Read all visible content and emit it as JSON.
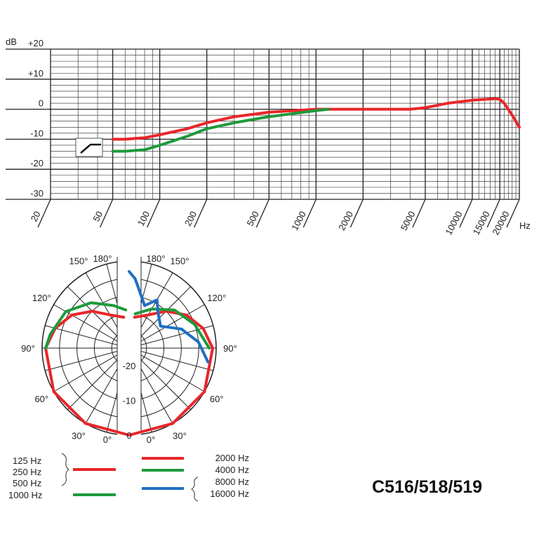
{
  "model": "C516/518/519",
  "chart_data": [
    {
      "type": "line",
      "xscale": "log",
      "xlim": [
        20,
        20000
      ],
      "ylim": [
        -30,
        20
      ],
      "ylabel": "dB",
      "xlabel": "Hz",
      "y_ticks": [
        "+20",
        "+10",
        "0",
        "-10",
        "-20",
        "-30"
      ],
      "x_ticks": [
        "20",
        "50",
        "100",
        "200",
        "500",
        "1000",
        "2000",
        "5000",
        "10000",
        "15000",
        "20000"
      ],
      "series": [
        {
          "color": "#e8262b",
          "x": [
            50,
            60,
            80,
            100,
            150,
            200,
            300,
            500,
            1000,
            2000,
            4000,
            5000,
            7000,
            10000,
            12000,
            14000,
            15000,
            16000,
            18000,
            20000
          ],
          "y": [
            -10,
            -10,
            -9.5,
            -8.5,
            -6.5,
            -4.5,
            -2.5,
            -1,
            0,
            0,
            0,
            0.5,
            2,
            3,
            3.3,
            3.5,
            3.3,
            2,
            -2,
            -6
          ]
        },
        {
          "color": "#1e9a3c",
          "x": [
            50,
            60,
            80,
            100,
            150,
            200,
            300,
            500,
            1000,
            1200
          ],
          "y": [
            -14,
            -14,
            -13.5,
            -12,
            -9,
            -6.5,
            -4.5,
            -2.5,
            -0.5,
            0
          ]
        }
      ]
    },
    {
      "type": "polar",
      "angle_labels": [
        "180°",
        "150°",
        "120°",
        "90°",
        "60°",
        "30°",
        "0°"
      ],
      "radial_labels": [
        "-20",
        "-10",
        "0"
      ],
      "rlim": [
        -25,
        0
      ],
      "series_left": [
        {
          "name": "125 Hz 250 Hz 500 Hz",
          "color": "#e8262b",
          "points": [
            [
              0,
              0
            ],
            [
              30,
              0
            ],
            [
              60,
              0
            ],
            [
              90,
              -1
            ],
            [
              105,
              -3
            ],
            [
              120,
              -6
            ],
            [
              135,
              -10
            ],
            [
              150,
              -14
            ],
            [
              170,
              -16
            ]
          ]
        },
        {
          "name": "1000 Hz",
          "color": "#1e9a3c",
          "points": [
            [
              90,
              -1
            ],
            [
              100,
              -2
            ],
            [
              120,
              -4
            ],
            [
              140,
              -8
            ],
            [
              160,
              -12
            ],
            [
              175,
              -14
            ]
          ]
        }
      ],
      "series_right": [
        {
          "name": "2000 Hz",
          "color": "#e8262b",
          "points": [
            [
              0,
              0
            ],
            [
              30,
              0
            ],
            [
              60,
              0
            ],
            [
              90,
              -1
            ],
            [
              105,
              -3
            ],
            [
              120,
              -6
            ],
            [
              135,
              -10
            ],
            [
              150,
              -14
            ],
            [
              170,
              -16
            ]
          ]
        },
        {
          "name": "4000 Hz",
          "color": "#1e9a3c",
          "points": [
            [
              90,
              -2
            ],
            [
              110,
              -5
            ],
            [
              130,
              -8
            ],
            [
              150,
              -12
            ],
            [
              170,
              -15
            ]
          ]
        },
        {
          "name": "8000 Hz 16000 Hz",
          "color": "#1f6fc4",
          "points": [
            [
              80,
              -2
            ],
            [
              95,
              -5
            ],
            [
              110,
              -9
            ],
            [
              125,
              -14
            ],
            [
              140,
              -12
            ],
            [
              150,
              -9
            ],
            [
              160,
              -12
            ],
            [
              175,
              -5
            ],
            [
              180,
              -3
            ]
          ]
        }
      ]
    }
  ],
  "legend": {
    "left": [
      "125 Hz",
      "250 Hz",
      "500 Hz",
      "1000 Hz"
    ],
    "right": [
      "2000 Hz",
      "4000 Hz",
      "8000 Hz",
      "16000 Hz"
    ]
  }
}
